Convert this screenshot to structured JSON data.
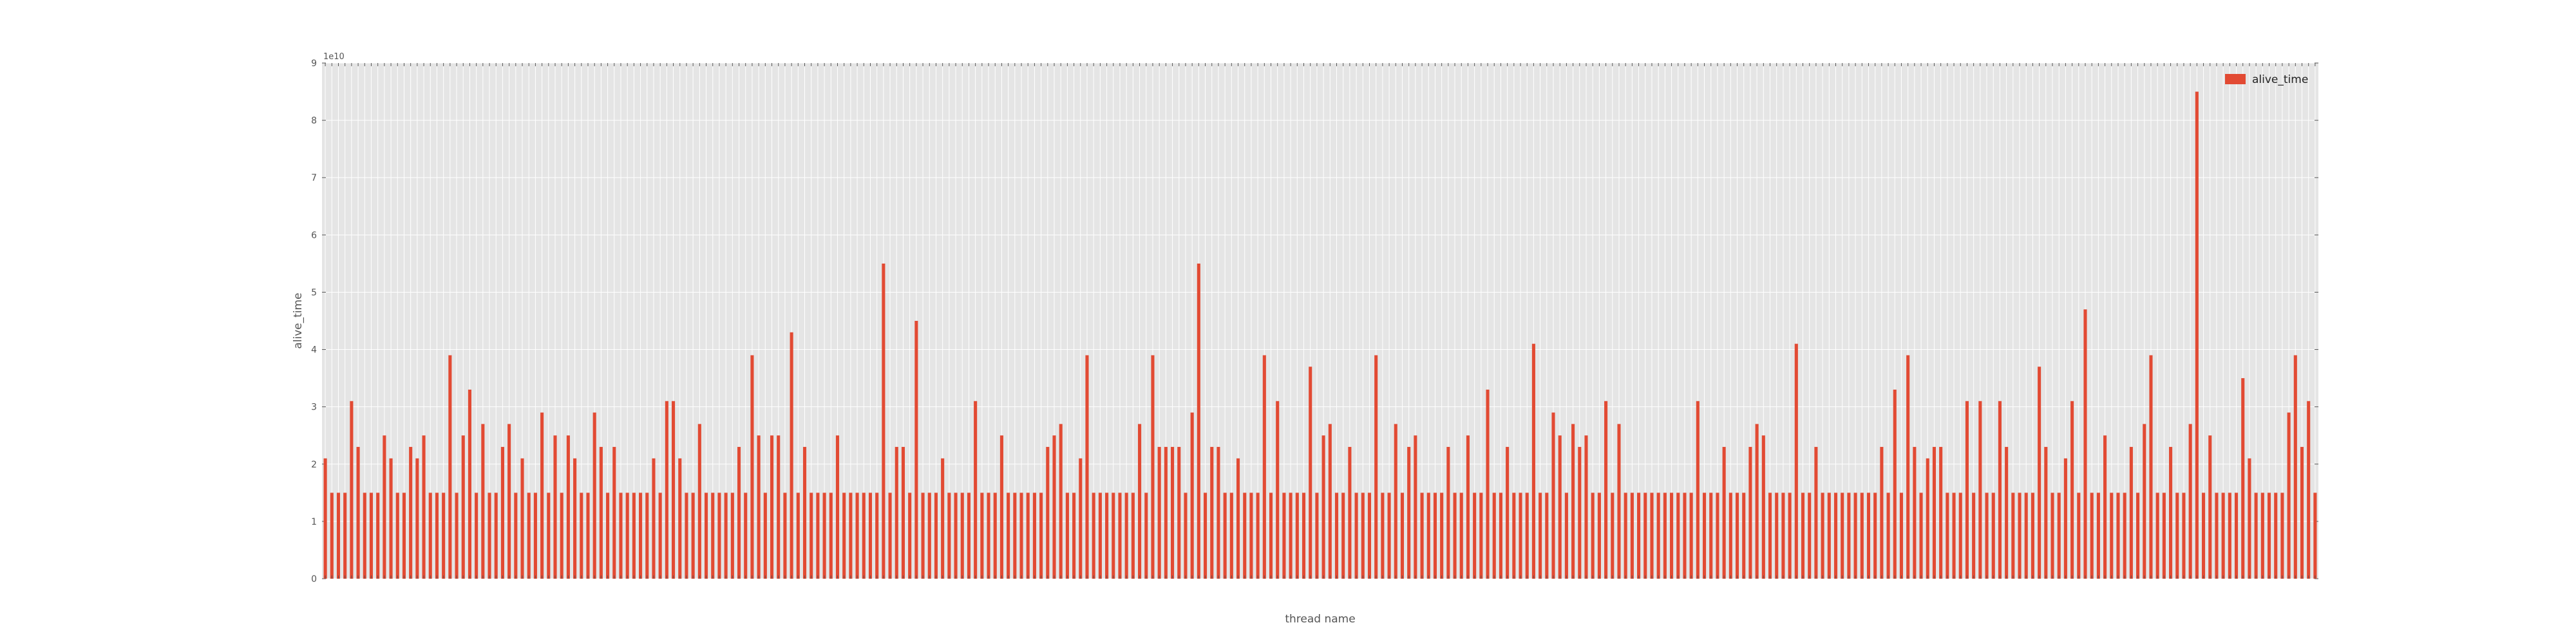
{
  "chart_data": {
    "type": "bar",
    "xlabel": "thread name",
    "ylabel": "alive_time",
    "y_multiplier_label": "1e10",
    "ylim": [
      0,
      9
    ],
    "yticks": [
      "0",
      "1",
      "2",
      "3",
      "4",
      "5",
      "6",
      "7",
      "8",
      "9"
    ],
    "grid": true,
    "legend_position": "top-right",
    "colors": {
      "bar": "#E24A33",
      "plot_bg": "#E5E5E5",
      "grid": "#FFFFFF"
    },
    "series": [
      {
        "name": "alive_time",
        "color": "#E24A33",
        "values": [
          2.1,
          1.5,
          1.5,
          1.5,
          3.1,
          2.3,
          1.5,
          1.5,
          1.5,
          2.5,
          2.1,
          1.5,
          1.5,
          2.3,
          2.1,
          2.5,
          1.5,
          1.5,
          1.5,
          3.9,
          1.5,
          2.5,
          3.3,
          1.5,
          2.7,
          1.5,
          1.5,
          2.3,
          2.7,
          1.5,
          2.1,
          1.5,
          1.5,
          2.9,
          1.5,
          2.5,
          1.5,
          2.5,
          2.1,
          1.5,
          1.5,
          2.9,
          2.3,
          1.5,
          2.3,
          1.5,
          1.5,
          1.5,
          1.5,
          1.5,
          2.1,
          1.5,
          3.1,
          3.1,
          2.1,
          1.5,
          1.5,
          2.7,
          1.5,
          1.5,
          1.5,
          1.5,
          1.5,
          2.3,
          1.5,
          3.9,
          2.5,
          1.5,
          2.5,
          2.5,
          1.5,
          4.3,
          1.5,
          2.3,
          1.5,
          1.5,
          1.5,
          1.5,
          2.5,
          1.5,
          1.5,
          1.5,
          1.5,
          1.5,
          1.5,
          5.5,
          1.5,
          2.3,
          2.3,
          1.5,
          4.5,
          1.5,
          1.5,
          1.5,
          2.1,
          1.5,
          1.5,
          1.5,
          1.5,
          3.1,
          1.5,
          1.5,
          1.5,
          2.5,
          1.5,
          1.5,
          1.5,
          1.5,
          1.5,
          1.5,
          2.3,
          2.5,
          2.7,
          1.5,
          1.5,
          2.1,
          3.9,
          1.5,
          1.5,
          1.5,
          1.5,
          1.5,
          1.5,
          1.5,
          2.7,
          1.5,
          3.9,
          2.3,
          2.3,
          2.3,
          2.3,
          1.5,
          2.9,
          5.5,
          1.5,
          2.3,
          2.3,
          1.5,
          1.5,
          2.1,
          1.5,
          1.5,
          1.5,
          3.9,
          1.5,
          3.1,
          1.5,
          1.5,
          1.5,
          1.5,
          3.7,
          1.5,
          2.5,
          2.7,
          1.5,
          1.5,
          2.3,
          1.5,
          1.5,
          1.5,
          3.9,
          1.5,
          1.5,
          2.7,
          1.5,
          2.3,
          2.5,
          1.5,
          1.5,
          1.5,
          1.5,
          2.3,
          1.5,
          1.5,
          2.5,
          1.5,
          1.5,
          3.3,
          1.5,
          1.5,
          2.3,
          1.5,
          1.5,
          1.5,
          4.1,
          1.5,
          1.5,
          2.9,
          2.5,
          1.5,
          2.7,
          2.3,
          2.5,
          1.5,
          1.5,
          3.1,
          1.5,
          2.7,
          1.5,
          1.5,
          1.5,
          1.5,
          1.5,
          1.5,
          1.5,
          1.5,
          1.5,
          1.5,
          1.5,
          3.1,
          1.5,
          1.5,
          1.5,
          2.3,
          1.5,
          1.5,
          1.5,
          2.3,
          2.7,
          2.5,
          1.5,
          1.5,
          1.5,
          1.5,
          4.1,
          1.5,
          1.5,
          2.3,
          1.5,
          1.5,
          1.5,
          1.5,
          1.5,
          1.5,
          1.5,
          1.5,
          1.5,
          2.3,
          1.5,
          3.3,
          1.5,
          3.9,
          2.3,
          1.5,
          2.1,
          2.3,
          2.3,
          1.5,
          1.5,
          1.5,
          3.1,
          1.5,
          3.1,
          1.5,
          1.5,
          3.1,
          2.3,
          1.5,
          1.5,
          1.5,
          1.5,
          3.7,
          2.3,
          1.5,
          1.5,
          2.1,
          3.1,
          1.5,
          4.7,
          1.5,
          1.5,
          2.5,
          1.5,
          1.5,
          1.5,
          2.3,
          1.5,
          2.7,
          3.9,
          1.5,
          1.5,
          2.3,
          1.5,
          1.5,
          2.7,
          8.5,
          1.5,
          2.5,
          1.5,
          1.5,
          1.5,
          1.5,
          3.5,
          2.1,
          1.5,
          1.5,
          1.5,
          1.5,
          1.5,
          2.9,
          3.9,
          2.3,
          3.1,
          1.5
        ]
      }
    ]
  }
}
